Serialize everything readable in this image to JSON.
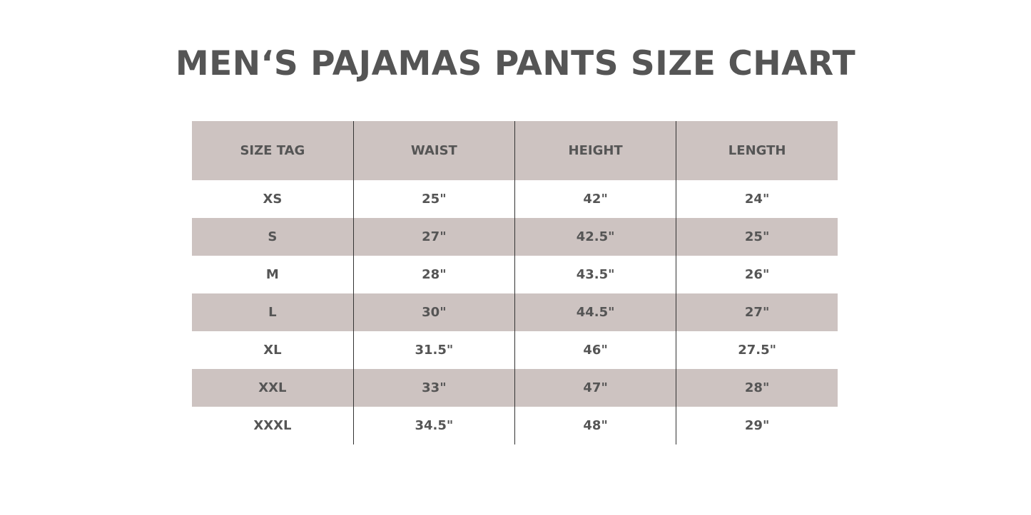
{
  "title": "MEN‘S PAJAMAS PANTS SIZE CHART",
  "colors": {
    "header_bg": "#cdc3c1",
    "text": "#555555",
    "divider": "#333333"
  },
  "table": {
    "headers": [
      "SIZE TAG",
      "WAIST",
      "HEIGHT",
      "LENGTH"
    ],
    "rows": [
      [
        "XS",
        "25\"",
        "42\"",
        "24\""
      ],
      [
        "S",
        "27\"",
        "42.5\"",
        "25\""
      ],
      [
        "M",
        "28\"",
        "43.5\"",
        "26\""
      ],
      [
        "L",
        "30\"",
        "44.5\"",
        "27\""
      ],
      [
        "XL",
        "31.5\"",
        "46\"",
        "27.5\""
      ],
      [
        "XXL",
        "33\"",
        "47\"",
        "28\""
      ],
      [
        "XXXL",
        "34.5\"",
        "48\"",
        "29\""
      ]
    ]
  }
}
